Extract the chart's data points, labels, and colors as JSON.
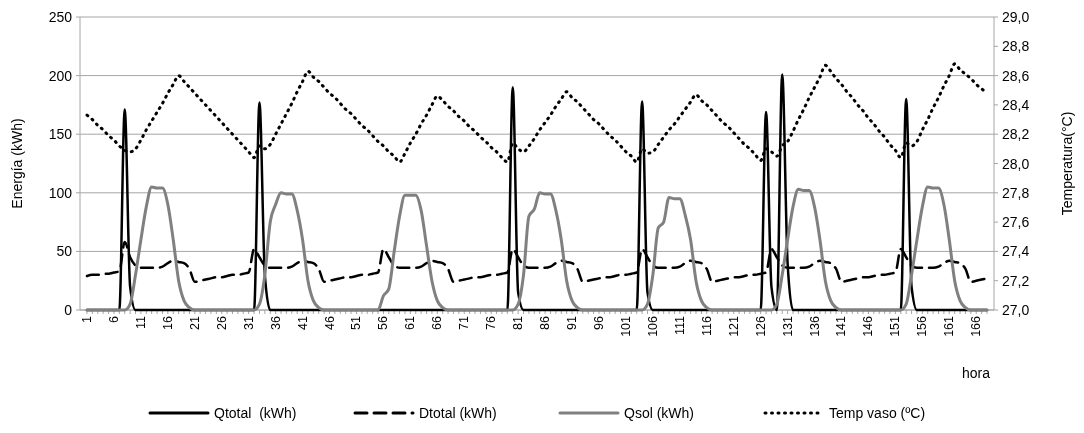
{
  "chart_data": {
    "type": "line",
    "ylabel": "Energía (kWh)",
    "y2label": "Temperatura(°C)",
    "xlabel": "hora",
    "categories": [
      "1",
      null,
      null,
      null,
      null,
      "6",
      null,
      null,
      null,
      null,
      "11",
      null,
      null,
      null,
      null,
      "16",
      null,
      null,
      null,
      null,
      "21",
      null,
      null,
      null,
      null,
      "26",
      null,
      null,
      null,
      null,
      "31",
      null,
      null,
      null,
      null,
      "36",
      null,
      null,
      null,
      null,
      "41",
      null,
      null,
      null,
      null,
      "46",
      null,
      null,
      null,
      null,
      "51",
      null,
      null,
      null,
      null,
      "56",
      null,
      null,
      null,
      null,
      "61",
      null,
      null,
      null,
      null,
      "66",
      null,
      null,
      null,
      null,
      "71",
      null,
      null,
      null,
      null,
      "76",
      null,
      null,
      null,
      null,
      "81",
      null,
      null,
      null,
      null,
      "86",
      null,
      null,
      null,
      null,
      "91",
      null,
      null,
      null,
      null,
      "96",
      null,
      null,
      null,
      null,
      "101",
      null,
      null,
      null,
      null,
      "106",
      null,
      null,
      null,
      null,
      "111",
      null,
      null,
      null,
      null,
      "116",
      null,
      null,
      null,
      null,
      "121",
      null,
      null,
      null,
      null,
      "126",
      null,
      null,
      null,
      null,
      "131",
      null,
      null,
      null,
      null,
      "136",
      null,
      null,
      null,
      null,
      "141",
      null,
      null,
      null,
      null,
      "146",
      null,
      null,
      null,
      null,
      "151",
      null,
      null,
      null,
      null,
      "156",
      null,
      null,
      null,
      null,
      "161",
      null,
      null,
      null,
      null,
      "166",
      null,
      null
    ],
    "ylim": [
      0,
      250
    ],
    "yticks": [
      0,
      50,
      100,
      150,
      200,
      250
    ],
    "y2lim": [
      27,
      29
    ],
    "y2ticks": [
      {
        "value": 27,
        "label": "27,0"
      },
      {
        "value": 27.2,
        "label": "27,2"
      },
      {
        "value": 27.4,
        "label": "27,4"
      },
      {
        "value": 27.6,
        "label": "27,6"
      },
      {
        "value": 27.8,
        "label": "27,8"
      },
      {
        "value": 28,
        "label": "28,0"
      },
      {
        "value": 28.2,
        "label": "28,2"
      },
      {
        "value": 28.4,
        "label": "28,4"
      },
      {
        "value": 28.6,
        "label": "28,6"
      },
      {
        "value": 28.8,
        "label": "28,8"
      },
      {
        "value": 29,
        "label": "29,0"
      }
    ],
    "grid": "y",
    "legend": "bottom",
    "series": [
      {
        "name": "Qtotal  (kWh)",
        "color": "#000000",
        "line_style": "solid",
        "values": [
          0,
          0,
          0,
          0,
          0,
          0,
          0,
          171,
          20,
          0,
          0,
          0,
          0,
          0,
          0,
          0,
          0,
          0,
          0,
          0,
          0,
          0,
          0,
          0,
          0,
          0,
          0,
          0,
          0,
          0,
          0,
          0,
          177,
          30,
          0,
          0,
          0,
          0,
          0,
          0,
          0,
          0,
          0,
          0,
          0,
          0,
          0,
          0,
          0,
          0,
          0,
          0,
          0,
          0,
          0,
          0,
          0,
          0,
          0,
          0,
          0,
          0,
          0,
          0,
          0,
          0,
          0,
          0,
          0,
          0,
          0,
          0,
          0,
          0,
          0,
          0,
          0,
          0,
          0,
          190,
          15,
          0,
          0,
          0,
          0,
          0,
          0,
          0,
          0,
          0,
          0,
          0,
          0,
          0,
          0,
          0,
          0,
          0,
          0,
          0,
          0,
          0,
          0,
          178,
          15,
          0,
          0,
          0,
          0,
          0,
          0,
          0,
          0,
          0,
          0,
          0,
          0,
          0,
          0,
          0,
          0,
          0,
          0,
          0,
          0,
          0,
          169,
          20,
          0,
          201,
          40,
          0,
          0,
          0,
          0,
          0,
          0,
          0,
          0,
          0,
          0,
          0,
          0,
          0,
          0,
          0,
          0,
          0,
          0,
          0,
          0,
          0,
          180,
          20,
          0,
          0,
          0,
          0,
          0,
          0,
          0,
          0,
          0,
          0,
          0,
          0,
          0,
          0
        ]
      },
      {
        "name": "Dtotal (kWh)",
        "color": "#000000",
        "line_style": "dashed",
        "values": [
          29,
          30,
          30,
          31,
          31,
          32,
          33,
          58,
          45,
          38,
          36,
          36,
          36,
          36,
          37,
          40,
          42,
          41,
          40,
          35,
          24,
          25,
          26,
          27,
          28,
          28,
          29,
          30,
          30,
          31,
          32,
          52,
          45,
          38,
          36,
          36,
          36,
          36,
          37,
          40,
          42,
          41,
          40,
          35,
          24,
          25,
          26,
          27,
          28,
          28,
          29,
          30,
          30,
          31,
          32,
          52,
          45,
          38,
          36,
          36,
          36,
          36,
          37,
          40,
          42,
          41,
          40,
          35,
          24,
          25,
          26,
          27,
          28,
          28,
          29,
          30,
          30,
          31,
          32,
          52,
          45,
          38,
          36,
          36,
          36,
          36,
          37,
          40,
          42,
          41,
          40,
          35,
          24,
          25,
          26,
          27,
          28,
          28,
          29,
          30,
          30,
          31,
          32,
          52,
          45,
          38,
          36,
          36,
          36,
          36,
          37,
          40,
          42,
          41,
          40,
          35,
          24,
          25,
          26,
          27,
          28,
          28,
          29,
          30,
          30,
          31,
          32,
          52,
          45,
          38,
          36,
          36,
          36,
          36,
          37,
          40,
          42,
          41,
          40,
          35,
          24,
          25,
          26,
          27,
          28,
          28,
          29,
          30,
          30,
          31,
          32,
          52,
          45,
          38,
          36,
          36,
          36,
          36,
          37,
          40,
          42,
          41,
          40,
          35,
          24,
          25,
          26,
          27
        ]
      },
      {
        "name": "Qsol (kWh)",
        "color": "#808080",
        "line_style": "solid",
        "values": [
          0,
          0,
          0,
          0,
          0,
          0,
          0,
          0,
          5,
          30,
          60,
          88,
          105,
          104,
          104,
          90,
          60,
          25,
          8,
          2,
          0,
          0,
          0,
          0,
          0,
          0,
          0,
          0,
          0,
          0,
          0,
          0,
          5,
          30,
          75,
          90,
          100,
          99,
          99,
          85,
          60,
          25,
          8,
          2,
          0,
          0,
          0,
          0,
          0,
          0,
          0,
          0,
          0,
          0,
          0,
          12,
          18,
          50,
          80,
          98,
          98,
          98,
          85,
          55,
          25,
          8,
          2,
          0,
          0,
          0,
          0,
          0,
          0,
          0,
          0,
          0,
          0,
          0,
          0,
          0,
          5,
          30,
          80,
          86,
          100,
          99,
          99,
          85,
          60,
          25,
          8,
          2,
          0,
          0,
          0,
          0,
          0,
          0,
          0,
          0,
          0,
          0,
          0,
          0,
          5,
          30,
          70,
          75,
          96,
          95,
          95,
          81,
          60,
          25,
          8,
          2,
          0,
          0,
          0,
          0,
          0,
          0,
          0,
          0,
          0,
          0,
          0,
          0,
          5,
          30,
          60,
          88,
          103,
          102,
          102,
          88,
          60,
          25,
          8,
          2,
          0,
          0,
          0,
          0,
          0,
          0,
          0,
          0,
          0,
          0,
          0,
          0,
          5,
          30,
          60,
          88,
          105,
          104,
          104,
          90,
          60,
          25,
          8,
          2,
          0,
          0,
          0,
          0
        ]
      },
      {
        "name": "Temp vaso (ºC)",
        "color": "#000000",
        "line_style": "dotted",
        "axis": "y2",
        "values": [
          28.33,
          28.3,
          28.26,
          28.23,
          28.19,
          28.16,
          28.12,
          28.09,
          28.08,
          28.1,
          28.16,
          28.23,
          28.29,
          28.35,
          28.41,
          28.48,
          28.54,
          28.6,
          28.56,
          28.52,
          28.48,
          28.44,
          28.4,
          28.36,
          28.32,
          28.28,
          28.24,
          28.2,
          28.16,
          28.12,
          28.08,
          28.04,
          28.12,
          28.1,
          28.13,
          28.2,
          28.27,
          28.34,
          28.41,
          28.49,
          28.56,
          28.63,
          28.59,
          28.56,
          28.52,
          28.48,
          28.45,
          28.41,
          28.37,
          28.34,
          28.3,
          28.26,
          28.23,
          28.19,
          28.15,
          28.12,
          28.08,
          28.05,
          28.01,
          28.07,
          28.14,
          28.2,
          28.27,
          28.33,
          28.4,
          28.46,
          28.43,
          28.39,
          28.36,
          28.32,
          28.29,
          28.25,
          28.22,
          28.18,
          28.15,
          28.11,
          28.08,
          28.04,
          28.01,
          28.14,
          28.1,
          28.08,
          28.12,
          28.17,
          28.23,
          28.28,
          28.33,
          28.39,
          28.44,
          28.49,
          28.45,
          28.42,
          28.38,
          28.34,
          28.3,
          28.27,
          28.23,
          28.19,
          28.16,
          28.12,
          28.08,
          28.05,
          28.01,
          28.1,
          28.07,
          28.08,
          28.13,
          28.18,
          28.23,
          28.27,
          28.32,
          28.37,
          28.42,
          28.47,
          28.43,
          28.4,
          28.36,
          28.32,
          28.28,
          28.25,
          28.21,
          28.17,
          28.13,
          28.1,
          28.06,
          28.02,
          28.1,
          28.08,
          28.05,
          28.12,
          28.15,
          28.22,
          28.3,
          28.37,
          28.45,
          28.52,
          28.59,
          28.67,
          28.63,
          28.58,
          28.54,
          28.49,
          28.45,
          28.4,
          28.36,
          28.31,
          28.27,
          28.22,
          28.18,
          28.13,
          28.09,
          28.04,
          28.14,
          28.12,
          28.15,
          28.23,
          28.3,
          28.38,
          28.45,
          28.53,
          28.6,
          28.68,
          28.64,
          28.61,
          28.58,
          28.54,
          28.51,
          28.48
        ]
      }
    ]
  }
}
